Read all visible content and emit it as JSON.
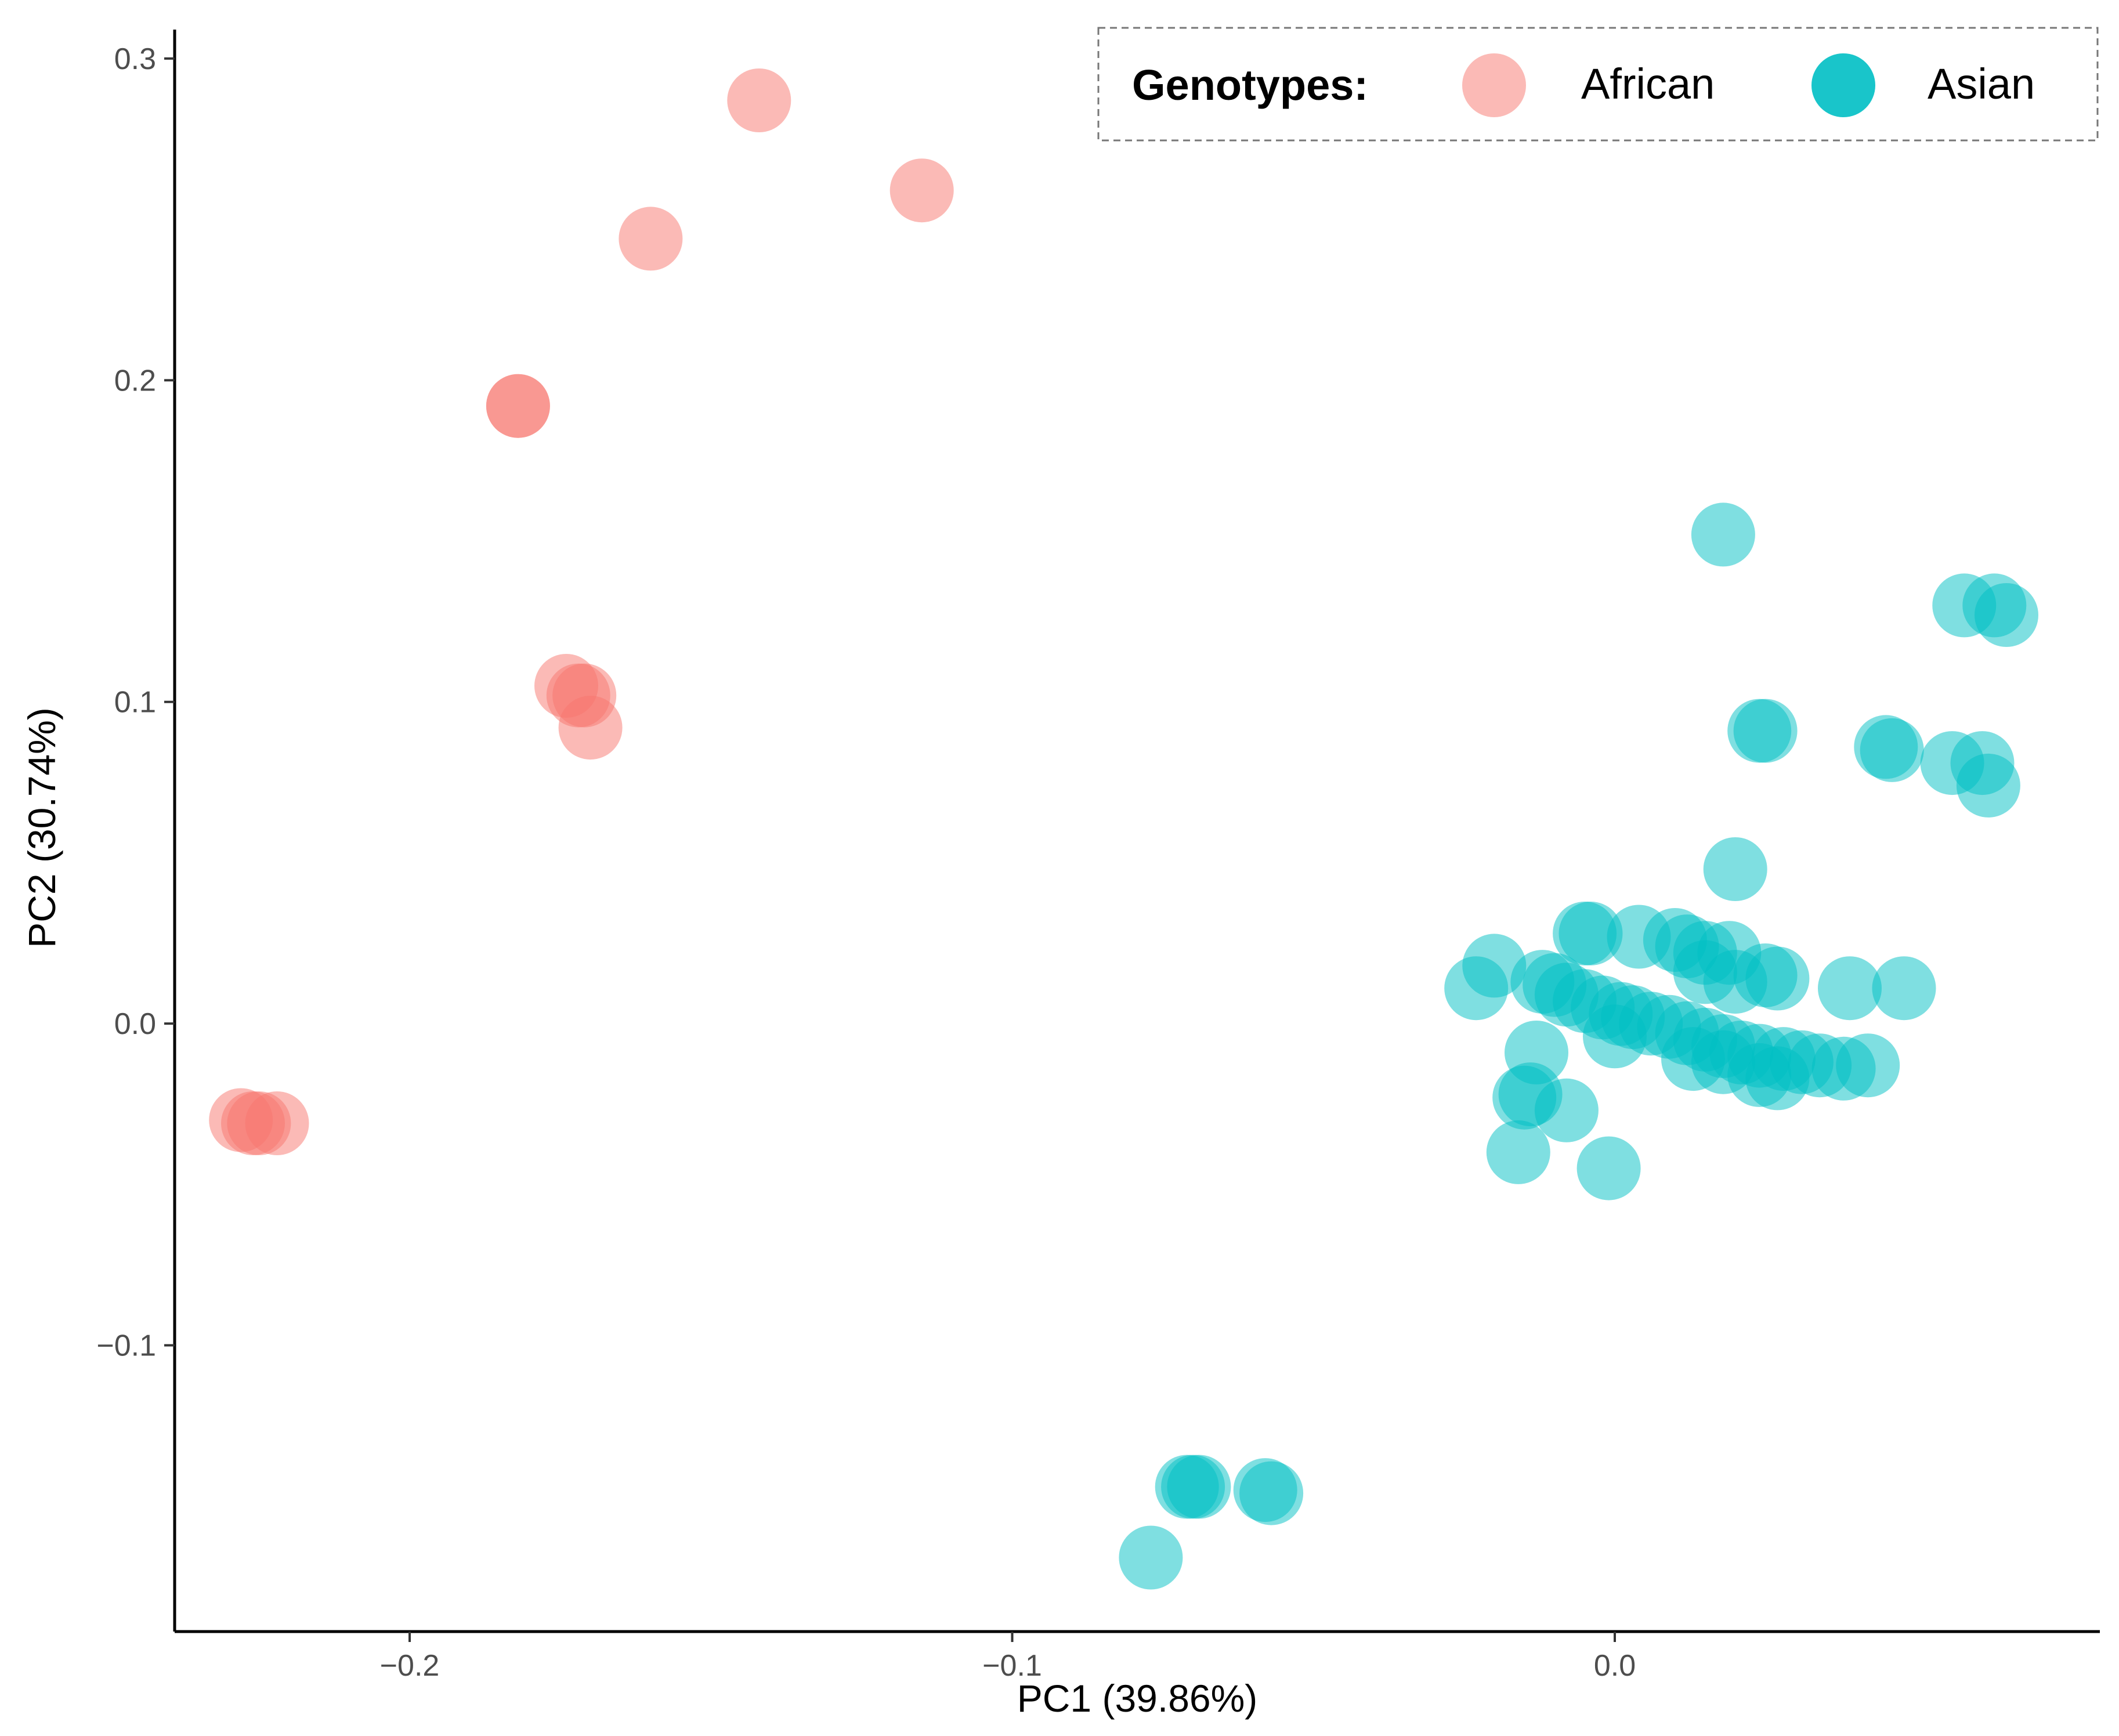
{
  "chart_data": {
    "type": "scatter",
    "title": "",
    "xlabel": "PC1 (39.86%)",
    "ylabel": "PC2 (30.74%)",
    "xlim": [
      -0.239,
      0.0805
    ],
    "ylim": [
      -0.189,
      0.309
    ],
    "x_ticks": [
      {
        "value": -0.2,
        "label": "−0.2"
      },
      {
        "value": -0.1,
        "label": "−0.1"
      },
      {
        "value": 0.0,
        "label": "0.0"
      }
    ],
    "y_ticks": [
      {
        "value": 0.3,
        "label": "0.3"
      },
      {
        "value": 0.2,
        "label": "0.2"
      },
      {
        "value": 0.1,
        "label": "0.1"
      },
      {
        "value": 0.0,
        "label": "0.0"
      },
      {
        "value": -0.1,
        "label": "−0.1"
      }
    ],
    "grid": false,
    "legend": {
      "title": "Genotypes:",
      "position": "top-right",
      "entries": [
        {
          "name": "African",
          "color": "#F8766D"
        },
        {
          "name": "Asian",
          "color": "#00BFC4"
        }
      ]
    },
    "series": [
      {
        "name": "African",
        "color": "#F8766D",
        "points": [
          {
            "x": -0.142,
            "y": 0.287
          },
          {
            "x": -0.115,
            "y": 0.259
          },
          {
            "x": -0.16,
            "y": 0.244
          },
          {
            "x": -0.182,
            "y": 0.192
          },
          {
            "x": -0.182,
            "y": 0.192
          },
          {
            "x": -0.174,
            "y": 0.105
          },
          {
            "x": -0.172,
            "y": 0.102
          },
          {
            "x": -0.171,
            "y": 0.102
          },
          {
            "x": -0.17,
            "y": 0.092
          },
          {
            "x": -0.228,
            "y": -0.03
          },
          {
            "x": -0.226,
            "y": -0.031
          },
          {
            "x": -0.225,
            "y": -0.031
          },
          {
            "x": -0.222,
            "y": -0.031
          }
        ]
      },
      {
        "name": "Asian",
        "color": "#00BFC4",
        "points": [
          {
            "x": 0.018,
            "y": 0.152
          },
          {
            "x": 0.058,
            "y": 0.13
          },
          {
            "x": 0.063,
            "y": 0.13
          },
          {
            "x": 0.065,
            "y": 0.127
          },
          {
            "x": 0.024,
            "y": 0.091
          },
          {
            "x": 0.025,
            "y": 0.091
          },
          {
            "x": 0.045,
            "y": 0.086
          },
          {
            "x": 0.046,
            "y": 0.085
          },
          {
            "x": 0.056,
            "y": 0.081
          },
          {
            "x": 0.061,
            "y": 0.081
          },
          {
            "x": 0.062,
            "y": 0.074
          },
          {
            "x": 0.02,
            "y": 0.048
          },
          {
            "x": -0.005,
            "y": 0.028
          },
          {
            "x": -0.004,
            "y": 0.028
          },
          {
            "x": 0.004,
            "y": 0.027
          },
          {
            "x": 0.01,
            "y": 0.026
          },
          {
            "x": 0.012,
            "y": 0.024
          },
          {
            "x": 0.015,
            "y": 0.022
          },
          {
            "x": 0.019,
            "y": 0.022
          },
          {
            "x": -0.02,
            "y": 0.018
          },
          {
            "x": -0.023,
            "y": 0.011
          },
          {
            "x": -0.012,
            "y": 0.013
          },
          {
            "x": -0.01,
            "y": 0.012
          },
          {
            "x": -0.008,
            "y": 0.009
          },
          {
            "x": -0.005,
            "y": 0.007
          },
          {
            "x": -0.002,
            "y": 0.005
          },
          {
            "x": 0.001,
            "y": 0.003
          },
          {
            "x": 0.003,
            "y": 0.002
          },
          {
            "x": 0.006,
            "y": 0.0
          },
          {
            "x": 0.009,
            "y": -0.001
          },
          {
            "x": 0.012,
            "y": -0.003
          },
          {
            "x": 0.015,
            "y": -0.005
          },
          {
            "x": 0.018,
            "y": -0.007
          },
          {
            "x": 0.021,
            "y": -0.009
          },
          {
            "x": 0.024,
            "y": -0.01
          },
          {
            "x": 0.028,
            "y": -0.011
          },
          {
            "x": 0.031,
            "y": -0.012
          },
          {
            "x": 0.034,
            "y": -0.013
          },
          {
            "x": 0.038,
            "y": -0.014
          },
          {
            "x": 0.042,
            "y": -0.013
          },
          {
            "x": 0.015,
            "y": 0.016
          },
          {
            "x": 0.02,
            "y": 0.013
          },
          {
            "x": 0.025,
            "y": 0.015
          },
          {
            "x": 0.027,
            "y": 0.014
          },
          {
            "x": 0.039,
            "y": 0.011
          },
          {
            "x": 0.048,
            "y": 0.011
          },
          {
            "x": 0.0,
            "y": -0.004
          },
          {
            "x": 0.013,
            "y": -0.011
          },
          {
            "x": 0.018,
            "y": -0.012
          },
          {
            "x": 0.024,
            "y": -0.016
          },
          {
            "x": 0.027,
            "y": -0.017
          },
          {
            "x": -0.013,
            "y": -0.009
          },
          {
            "x": -0.014,
            "y": -0.022
          },
          {
            "x": -0.015,
            "y": -0.023
          },
          {
            "x": -0.008,
            "y": -0.027
          },
          {
            "x": -0.016,
            "y": -0.04
          },
          {
            "x": -0.001,
            "y": -0.045
          },
          {
            "x": -0.071,
            "y": -0.144
          },
          {
            "x": -0.07,
            "y": -0.144
          },
          {
            "x": -0.069,
            "y": -0.144
          },
          {
            "x": -0.058,
            "y": -0.145
          },
          {
            "x": -0.057,
            "y": -0.146
          },
          {
            "x": -0.077,
            "y": -0.166
          }
        ]
      }
    ]
  }
}
